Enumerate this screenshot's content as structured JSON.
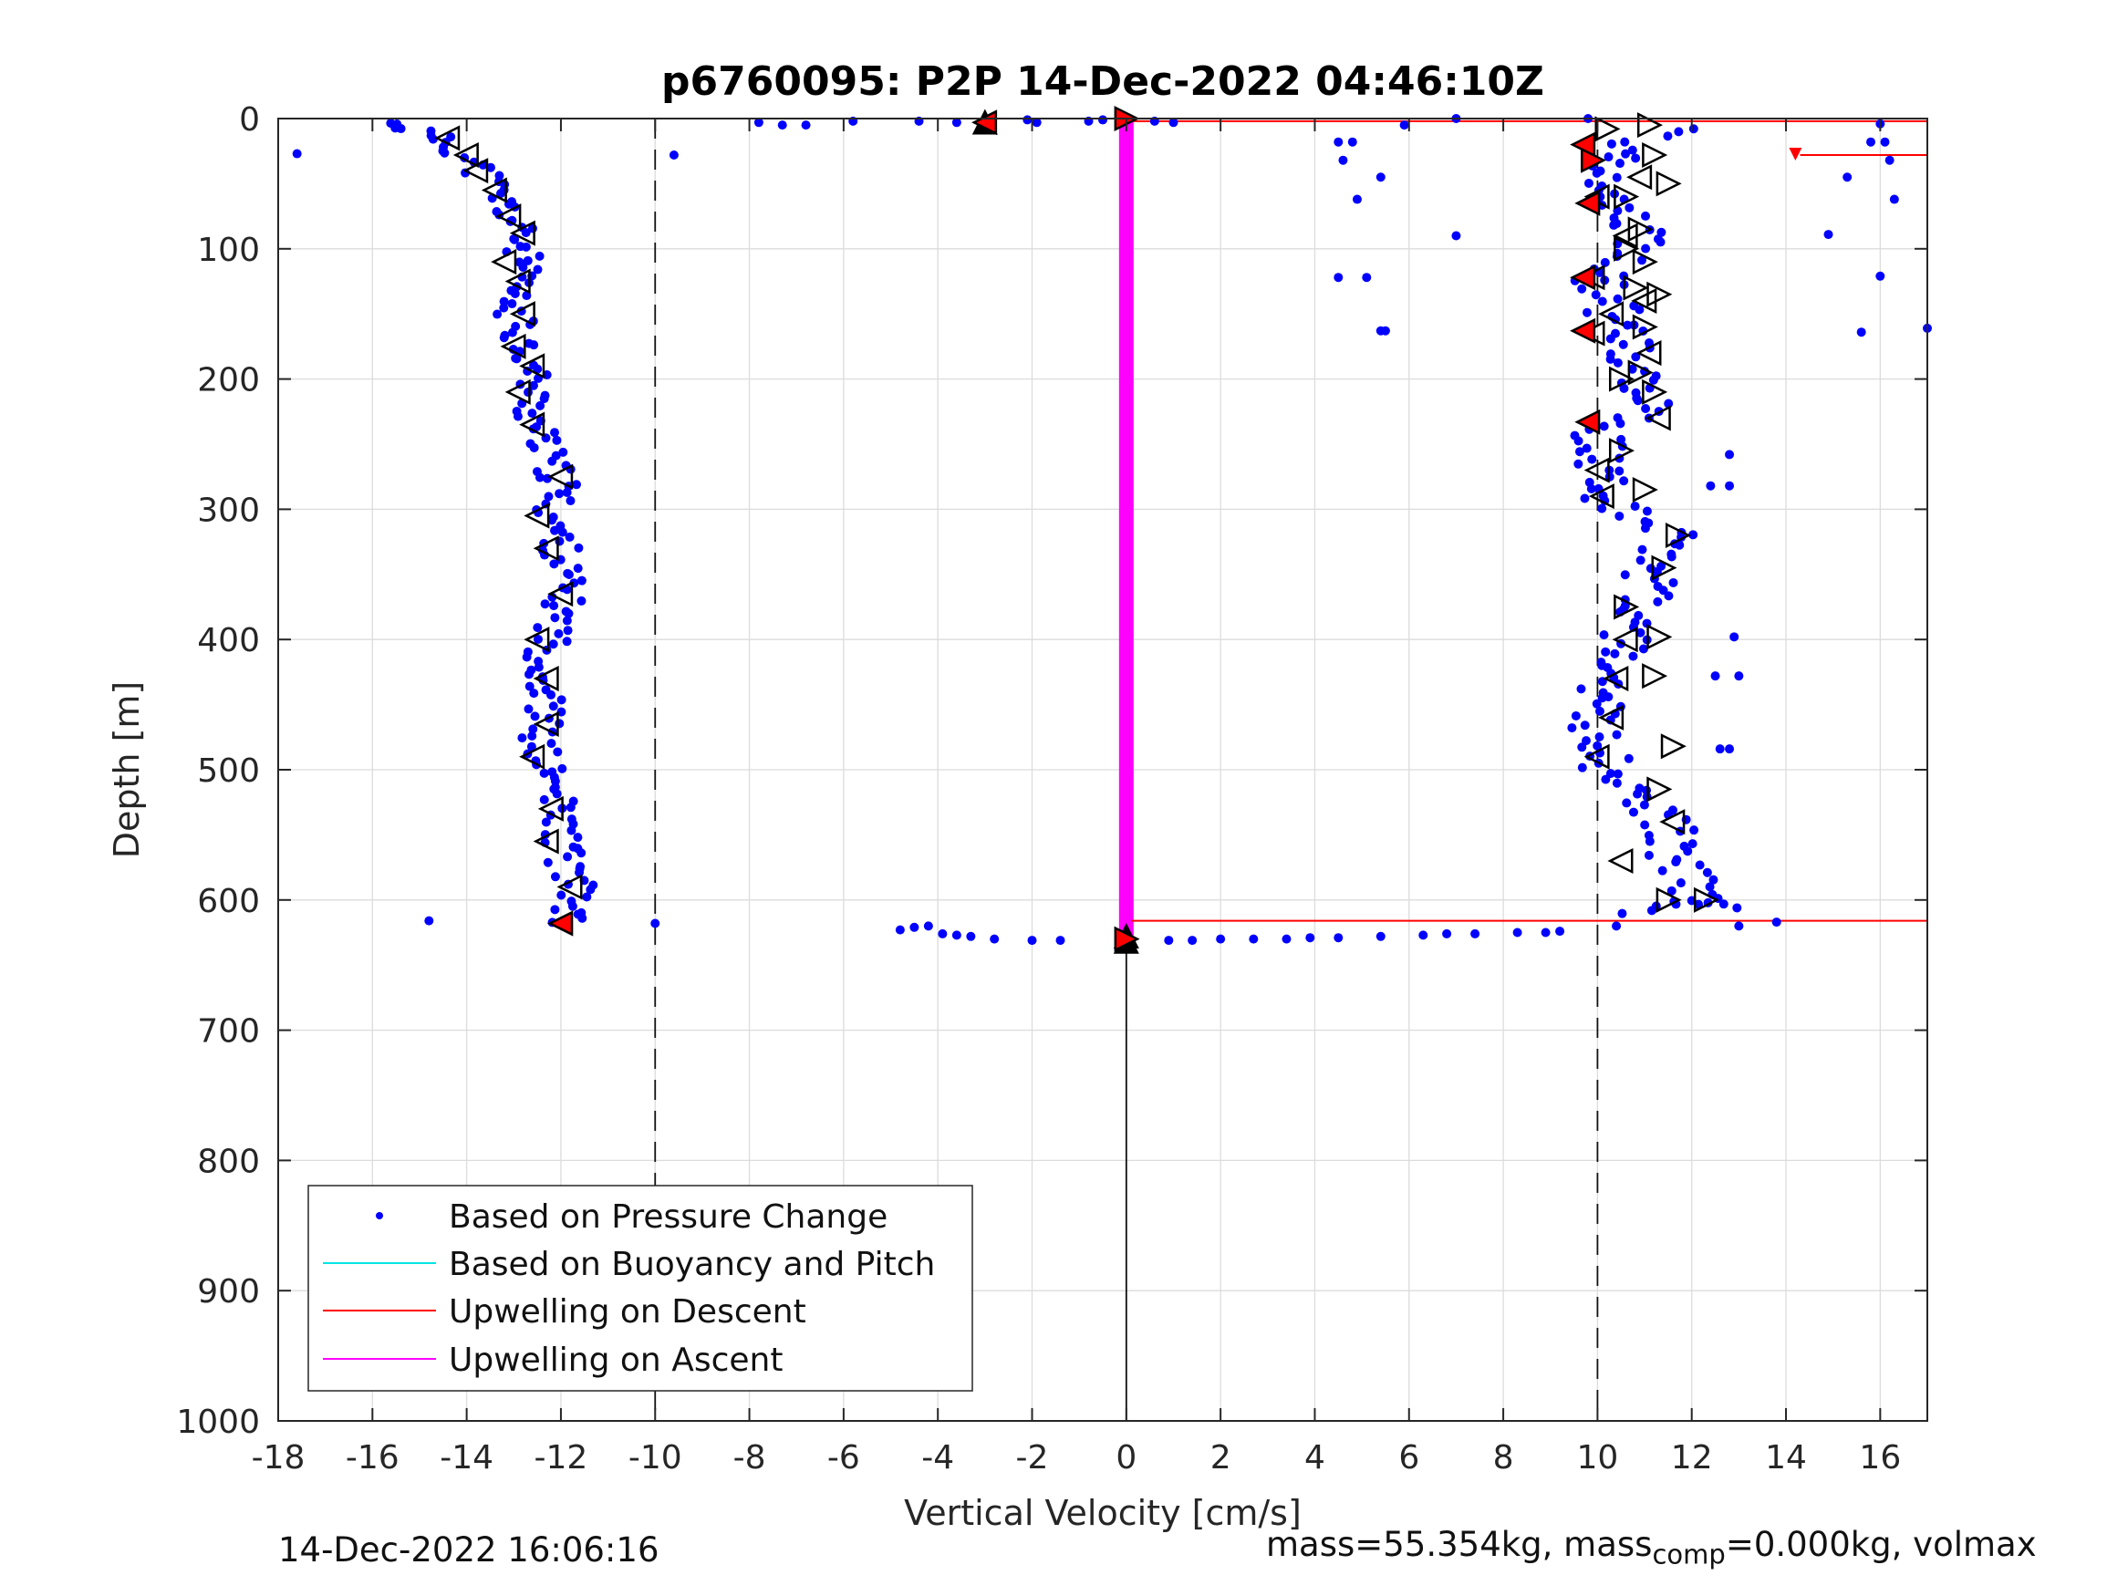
{
  "chart_data": {
    "type": "scatter",
    "title": "p6760095: P2P 14-Dec-2022 04:46:10Z",
    "xlabel": "Vertical Velocity [cm/s]",
    "ylabel": "Depth [m]",
    "xlim": [
      -18,
      17
    ],
    "ylim": [
      0,
      1000
    ],
    "y_reversed": true,
    "grid": true,
    "xticks": [
      -18,
      -16,
      -14,
      -12,
      -10,
      -8,
      -6,
      -4,
      -2,
      0,
      2,
      4,
      6,
      8,
      10,
      12,
      14,
      16
    ],
    "yticks": [
      0,
      100,
      200,
      300,
      400,
      500,
      600,
      700,
      800,
      900,
      1000
    ],
    "reference_lines": [
      {
        "x": -10,
        "style": "dashed"
      },
      {
        "x": 10,
        "style": "dashed"
      },
      {
        "x": 0,
        "y_from": 625,
        "y_to": 1000,
        "style": "solid"
      }
    ],
    "legend": {
      "position": "bottom-left",
      "entries": [
        {
          "label": "Based on Pressure Change",
          "color": "#0000ff",
          "marker": "dot"
        },
        {
          "label": "Based on Buoyancy and Pitch",
          "color": "#00e5e5",
          "marker": "line"
        },
        {
          "label": "Upwelling on Descent",
          "color": "#ff0000",
          "marker": "line"
        },
        {
          "label": "Upwelling on Ascent",
          "color": "#ff00ff",
          "marker": "line"
        }
      ]
    },
    "series": [
      {
        "name": "Based on Pressure Change",
        "color": "#0000ff",
        "descent_profile": [
          [
            -15.6,
            3
          ],
          [
            -15.0,
            10
          ],
          [
            -14.4,
            18
          ],
          [
            -14.0,
            30
          ],
          [
            -13.6,
            45
          ],
          [
            -13.3,
            60
          ],
          [
            -13.0,
            80
          ],
          [
            -12.8,
            100
          ],
          [
            -12.9,
            120
          ],
          [
            -13.1,
            140
          ],
          [
            -12.9,
            160
          ],
          [
            -12.7,
            180
          ],
          [
            -12.6,
            200
          ],
          [
            -12.6,
            230
          ],
          [
            -12.3,
            260
          ],
          [
            -12.0,
            280
          ],
          [
            -12.2,
            300
          ],
          [
            -12.0,
            330
          ],
          [
            -11.9,
            360
          ],
          [
            -12.1,
            390
          ],
          [
            -12.4,
            420
          ],
          [
            -12.3,
            450
          ],
          [
            -12.5,
            480
          ],
          [
            -12.2,
            510
          ],
          [
            -12.0,
            540
          ],
          [
            -11.9,
            570
          ],
          [
            -11.7,
            590
          ],
          [
            -11.8,
            610
          ],
          [
            -12.0,
            618
          ]
        ],
        "ascent_profile": [
          [
            10.3,
            610
          ],
          [
            11.4,
            600
          ],
          [
            12.4,
            605
          ],
          [
            11.9,
            580
          ],
          [
            11.6,
            560
          ],
          [
            11.3,
            530
          ],
          [
            10.5,
            510
          ],
          [
            10.1,
            490
          ],
          [
            10.0,
            460
          ],
          [
            10.1,
            440
          ],
          [
            10.5,
            420
          ],
          [
            10.6,
            400
          ],
          [
            10.8,
            380
          ],
          [
            11.1,
            360
          ],
          [
            11.3,
            340
          ],
          [
            11.5,
            320
          ],
          [
            10.4,
            300
          ],
          [
            10.0,
            280
          ],
          [
            9.9,
            260
          ],
          [
            10.1,
            240
          ],
          [
            11.2,
            220
          ],
          [
            11.0,
            200
          ],
          [
            10.8,
            180
          ],
          [
            10.4,
            160
          ],
          [
            10.3,
            140
          ],
          [
            10.0,
            120
          ],
          [
            11.0,
            100
          ],
          [
            10.6,
            80
          ],
          [
            10.3,
            60
          ],
          [
            10.0,
            40
          ],
          [
            10.9,
            20
          ],
          [
            11.6,
            5
          ]
        ],
        "surface_points": [
          [
            -7.8,
            3
          ],
          [
            -7.3,
            5
          ],
          [
            -6.8,
            5
          ],
          [
            -5.8,
            2
          ],
          [
            -4.4,
            2
          ],
          [
            -3.6,
            3
          ],
          [
            -2.1,
            1
          ],
          [
            -1.9,
            3
          ],
          [
            -0.8,
            2
          ],
          [
            -0.5,
            1
          ],
          [
            0.6,
            2
          ],
          [
            1.0,
            3
          ],
          [
            5.9,
            5
          ],
          [
            7.0,
            0
          ],
          [
            9.8,
            0
          ],
          [
            -9.6,
            28
          ],
          [
            -17.6,
            27
          ]
        ],
        "bottom_points": [
          [
            -4.8,
            623
          ],
          [
            -4.5,
            621
          ],
          [
            -4.2,
            620
          ],
          [
            -3.9,
            626
          ],
          [
            -3.6,
            627
          ],
          [
            -3.3,
            628
          ],
          [
            -2.8,
            630
          ],
          [
            -2.0,
            631
          ],
          [
            -1.4,
            631
          ],
          [
            0.9,
            631
          ],
          [
            1.4,
            631
          ],
          [
            2.0,
            630
          ],
          [
            2.7,
            630
          ],
          [
            3.4,
            630
          ],
          [
            3.9,
            629
          ],
          [
            4.5,
            629
          ],
          [
            5.4,
            628
          ],
          [
            6.3,
            627
          ],
          [
            6.8,
            626
          ],
          [
            7.4,
            626
          ],
          [
            8.3,
            625
          ],
          [
            8.9,
            625
          ],
          [
            9.2,
            624
          ],
          [
            10.4,
            620
          ],
          [
            13.0,
            620
          ],
          [
            13.8,
            617
          ],
          [
            -14.8,
            616
          ],
          [
            -10.0,
            618
          ]
        ],
        "scattered_points": [
          [
            4.5,
            18
          ],
          [
            4.8,
            18
          ],
          [
            4.6,
            32
          ],
          [
            5.4,
            45
          ],
          [
            4.9,
            62
          ],
          [
            7.0,
            90
          ],
          [
            4.5,
            122
          ],
          [
            5.1,
            122
          ],
          [
            5.4,
            163
          ],
          [
            5.5,
            163
          ],
          [
            14.9,
            89
          ],
          [
            15.3,
            45
          ],
          [
            15.8,
            18
          ],
          [
            16.1,
            18
          ],
          [
            16.2,
            32
          ],
          [
            16.3,
            62
          ],
          [
            15.6,
            164
          ],
          [
            16.0,
            121
          ],
          [
            17.0,
            161
          ],
          [
            16.0,
            4
          ],
          [
            12.8,
            258
          ],
          [
            12.4,
            282
          ],
          [
            12.8,
            282
          ],
          [
            12.9,
            398
          ],
          [
            13.0,
            428
          ],
          [
            12.5,
            428
          ],
          [
            12.8,
            484
          ],
          [
            12.6,
            484
          ]
        ]
      },
      {
        "name": "Upwelling on Descent",
        "color": "#ff0000",
        "lines": [
          {
            "y": 2,
            "x_from": 0.1,
            "x_to": 17
          },
          {
            "y": 616,
            "x_from": 0.1,
            "x_to": 17
          },
          {
            "y": 28,
            "x_from": 14.3,
            "x_to": 17
          }
        ]
      },
      {
        "name": "Upwelling on Ascent",
        "color": "#ff00ff",
        "segment": {
          "x": 0,
          "y_from": 0,
          "y_to": 630
        }
      }
    ],
    "markers": {
      "left_open": [
        [
          -14.4,
          15
        ],
        [
          -14.0,
          28
        ],
        [
          -13.8,
          40
        ],
        [
          -13.4,
          55
        ],
        [
          -13.1,
          75
        ],
        [
          -12.8,
          88
        ],
        [
          -13.2,
          110
        ],
        [
          -12.9,
          125
        ],
        [
          -12.8,
          150
        ],
        [
          -13.0,
          175
        ],
        [
          -12.6,
          190
        ],
        [
          -12.9,
          210
        ],
        [
          -12.6,
          235
        ],
        [
          -12.0,
          275
        ],
        [
          -12.5,
          305
        ],
        [
          -12.3,
          330
        ],
        [
          -12.0,
          365
        ],
        [
          -12.5,
          400
        ],
        [
          -12.3,
          430
        ],
        [
          -12.3,
          465
        ],
        [
          -12.6,
          490
        ],
        [
          -12.2,
          530
        ],
        [
          -12.3,
          555
        ],
        [
          -11.8,
          590
        ],
        [
          -12.0,
          618
        ],
        [
          10.0,
          60
        ],
        [
          10.6,
          90
        ],
        [
          9.9,
          122
        ],
        [
          10.3,
          150
        ],
        [
          9.9,
          165
        ],
        [
          10.0,
          270
        ],
        [
          10.1,
          290
        ],
        [
          10.3,
          460
        ],
        [
          10.0,
          490
        ],
        [
          10.5,
          570
        ],
        [
          10.9,
          45
        ],
        [
          11.0,
          140
        ],
        [
          11.1,
          180
        ],
        [
          11.3,
          230
        ],
        [
          10.6,
          400
        ],
        [
          10.4,
          430
        ],
        [
          11.6,
          540
        ]
      ],
      "right_open": [
        [
          11.1,
          5
        ],
        [
          11.2,
          28
        ],
        [
          11.5,
          50
        ],
        [
          10.9,
          85
        ],
        [
          11.0,
          110
        ],
        [
          11.3,
          135
        ],
        [
          11.0,
          160
        ],
        [
          10.9,
          195
        ],
        [
          10.5,
          200
        ],
        [
          11.2,
          210
        ],
        [
          10.5,
          255
        ],
        [
          11.0,
          285
        ],
        [
          11.7,
          320
        ],
        [
          11.4,
          345
        ],
        [
          10.6,
          375
        ],
        [
          11.3,
          398
        ],
        [
          11.2,
          428
        ],
        [
          11.6,
          482
        ],
        [
          11.3,
          515
        ],
        [
          12.3,
          600
        ],
        [
          10.2,
          8
        ],
        [
          10.6,
          100
        ],
        [
          10.6,
          60
        ],
        [
          10.8,
          130
        ],
        [
          11.5,
          600
        ]
      ],
      "up_filled": [
        [
          -3.0,
          3
        ],
        [
          0.0,
          632
        ],
        [
          0.0,
          628
        ]
      ],
      "filled_red_left": [
        [
          -3.0,
          3
        ],
        [
          -12.0,
          618
        ],
        [
          9.7,
          20
        ],
        [
          9.8,
          65
        ],
        [
          9.7,
          122
        ],
        [
          9.7,
          163
        ],
        [
          9.8,
          233
        ]
      ],
      "filled_red_right": [
        [
          0.0,
          0
        ],
        [
          0.0,
          630
        ],
        [
          9.9,
          32
        ]
      ]
    }
  },
  "footer": {
    "timestamp": "14-Dec-2022 16:06:16",
    "mass_prefix": "mass=55.354kg, mass",
    "mass_sub": "comp",
    "mass_suffix": "=0.000kg, volmax"
  }
}
